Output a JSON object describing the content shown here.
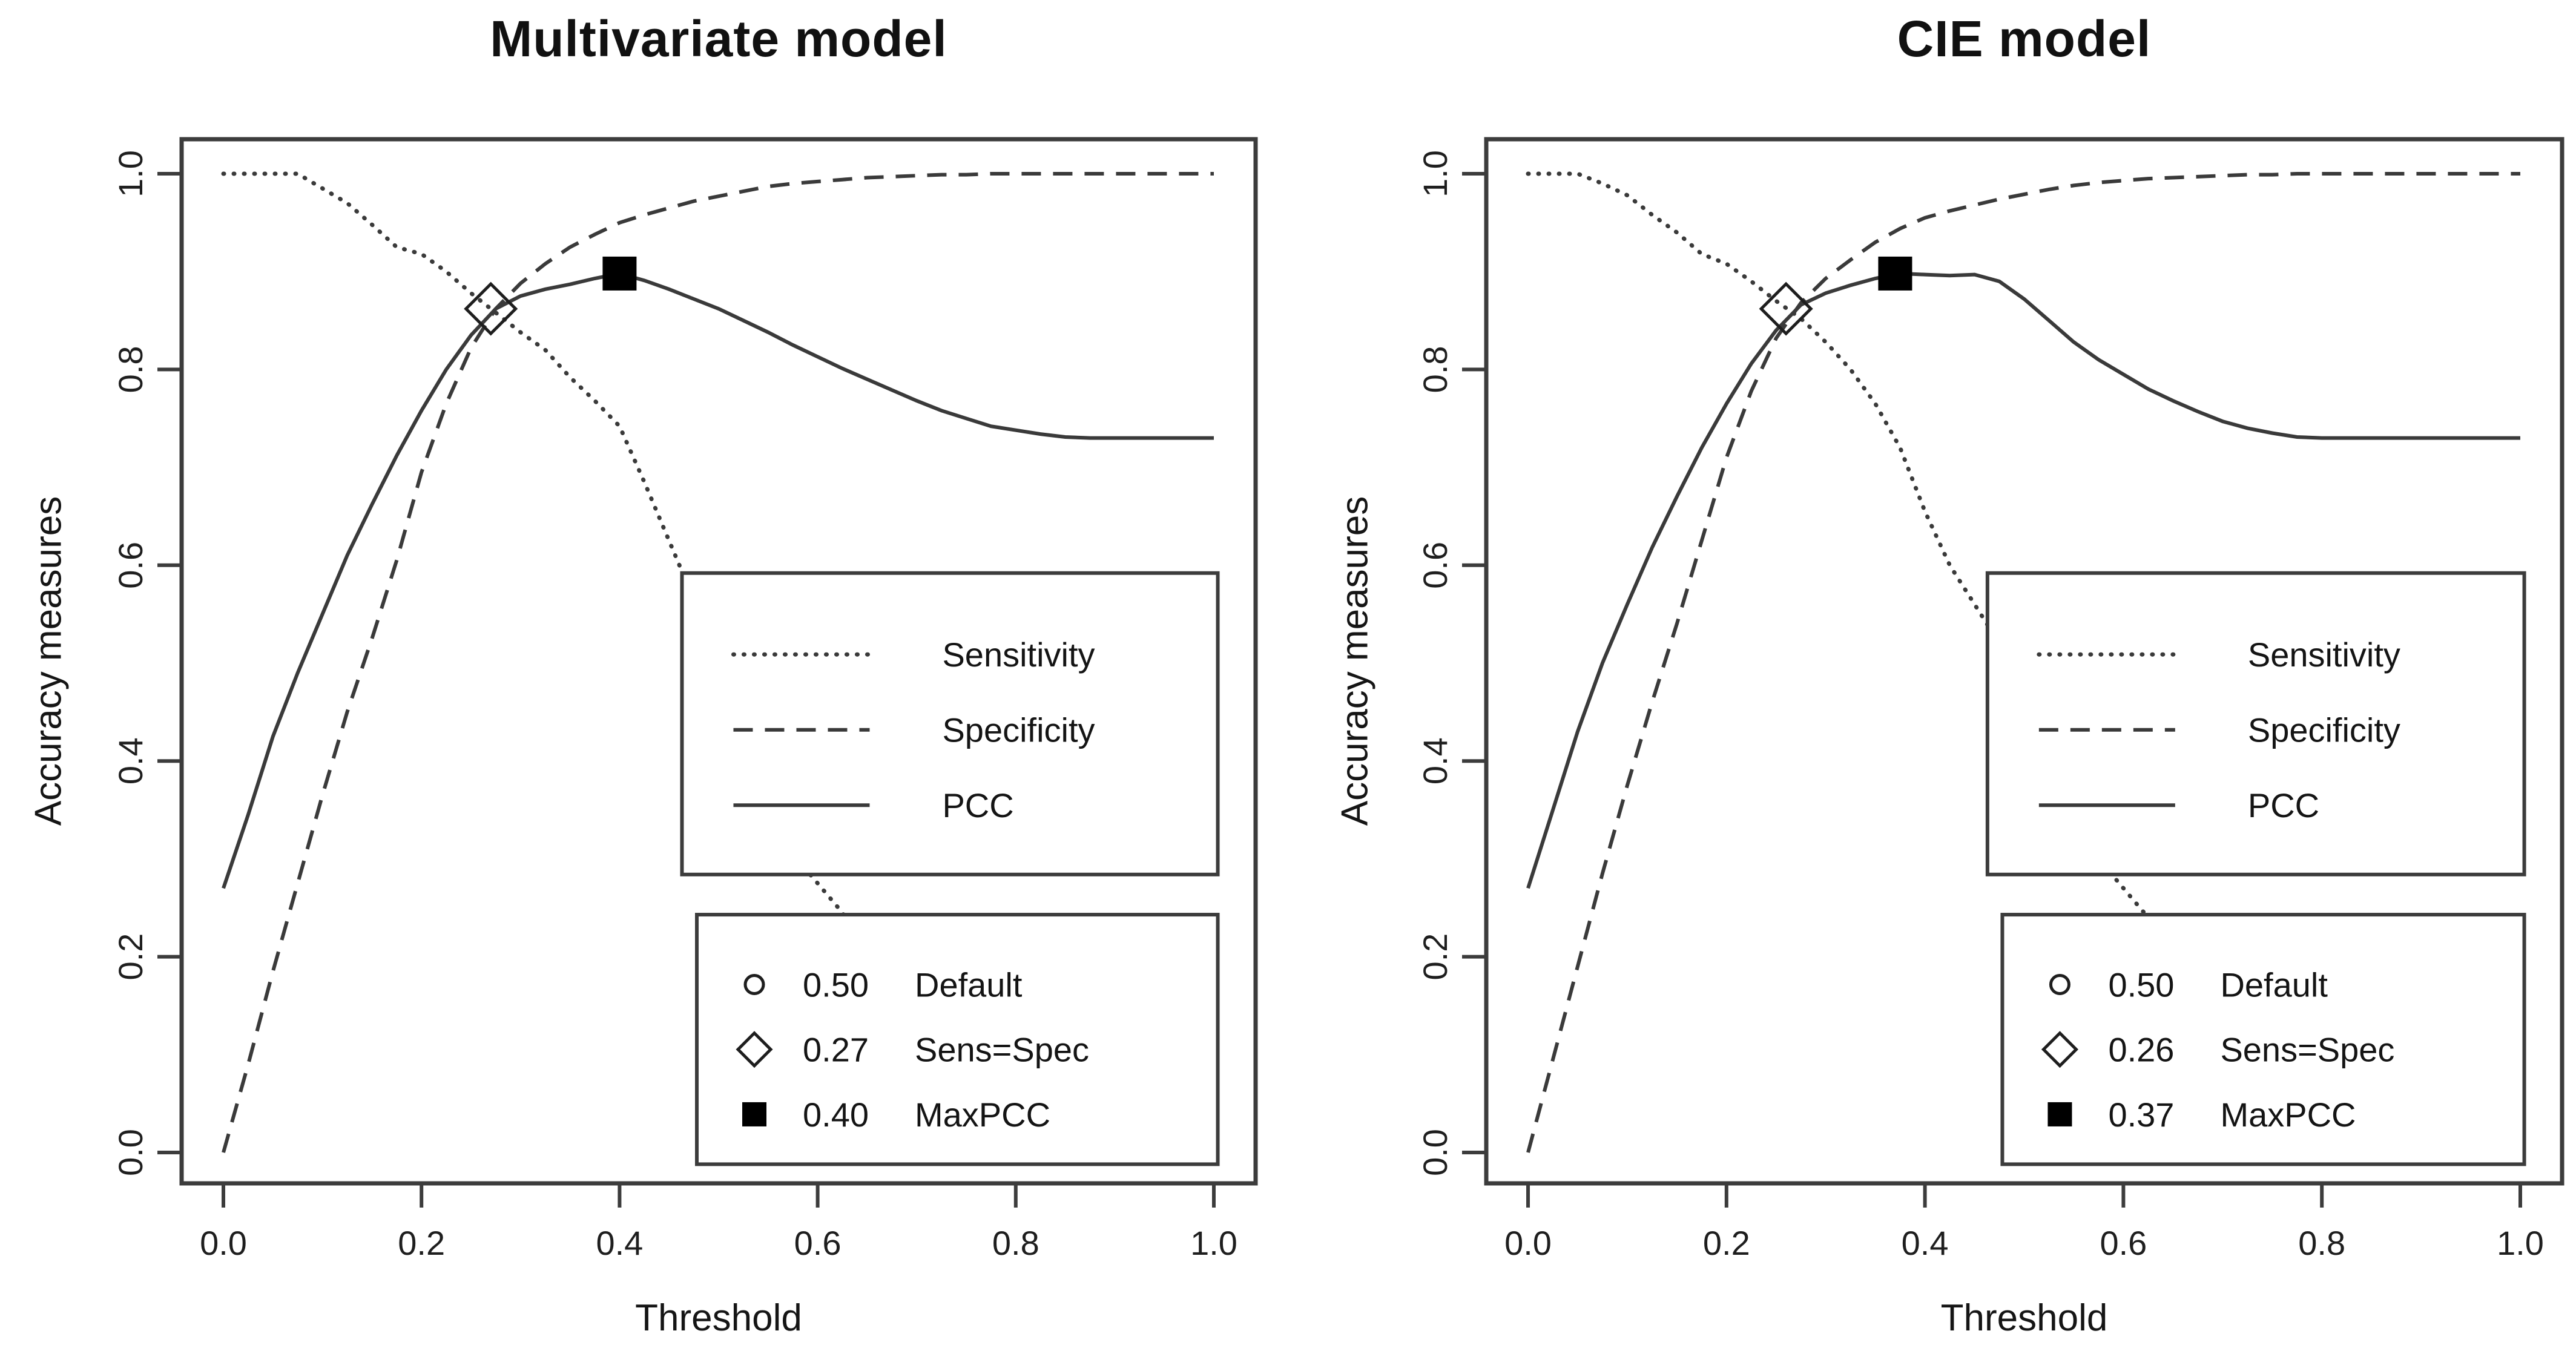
{
  "figure": {
    "background": "#ffffff",
    "ink_color": "#1e1e1e",
    "line_color": "#3a3a3a",
    "box_color": "#3c3c3c"
  },
  "chart_data": [
    {
      "type": "line",
      "title": "Multivariate model",
      "xlabel": "Threshold",
      "ylabel": "Accuracy measures",
      "xlim": [
        0,
        1
      ],
      "ylim": [
        0,
        1
      ],
      "grid": false,
      "x_tick_labels": [
        "0.0",
        "0.2",
        "0.4",
        "0.6",
        "0.8",
        "1.0"
      ],
      "y_tick_labels": [
        "0.0",
        "0.2",
        "0.4",
        "0.6",
        "0.8",
        "1.0"
      ],
      "x": [
        0,
        0.025,
        0.05,
        0.075,
        0.1,
        0.125,
        0.15,
        0.175,
        0.2,
        0.225,
        0.25,
        0.275,
        0.3,
        0.325,
        0.35,
        0.375,
        0.4,
        0.425,
        0.45,
        0.475,
        0.5,
        0.525,
        0.55,
        0.575,
        0.6,
        0.625,
        0.65,
        0.675,
        0.7,
        0.725,
        0.75,
        0.775,
        0.8,
        0.825,
        0.85,
        0.875,
        0.9,
        0.925,
        0.95,
        0.975,
        1
      ],
      "series": [
        {
          "name": "Sensitivity",
          "style": "dotted",
          "values": [
            1,
            1,
            1,
            1,
            0.985,
            0.97,
            0.948,
            0.925,
            0.918,
            0.9,
            0.878,
            0.858,
            0.838,
            0.82,
            0.792,
            0.768,
            0.742,
            0.685,
            0.625,
            0.565,
            0.47,
            0.4,
            0.345,
            0.305,
            0.275,
            0.245,
            0.2,
            0.155,
            0.115,
            0.09,
            0.07,
            0.055,
            0.04,
            0.03,
            0.025,
            0.02,
            0.015,
            0.012,
            0.01,
            0.008,
            0.005
          ]
        },
        {
          "name": "Specificity",
          "style": "dashed",
          "values": [
            0,
            0.09,
            0.185,
            0.275,
            0.365,
            0.45,
            0.525,
            0.605,
            0.695,
            0.765,
            0.822,
            0.862,
            0.888,
            0.908,
            0.925,
            0.938,
            0.95,
            0.958,
            0.965,
            0.972,
            0.977,
            0.982,
            0.987,
            0.99,
            0.992,
            0.994,
            0.996,
            0.997,
            0.998,
            0.999,
            0.999,
            1,
            1,
            1,
            1,
            1,
            1,
            1,
            1,
            1,
            1
          ]
        },
        {
          "name": "PCC",
          "style": "solid",
          "values": [
            0.27,
            0.345,
            0.425,
            0.49,
            0.55,
            0.61,
            0.662,
            0.712,
            0.758,
            0.8,
            0.835,
            0.862,
            0.875,
            0.882,
            0.887,
            0.893,
            0.898,
            0.891,
            0.882,
            0.872,
            0.862,
            0.85,
            0.838,
            0.825,
            0.813,
            0.801,
            0.79,
            0.779,
            0.768,
            0.758,
            0.75,
            0.742,
            0.738,
            0.734,
            0.731,
            0.73,
            0.73,
            0.73,
            0.73,
            0.73,
            0.73
          ]
        }
      ],
      "threshold_markers": [
        {
          "shape": "circle",
          "display": "0.50",
          "label": "Default",
          "t": 0.5,
          "v": 0.47
        },
        {
          "shape": "diamond",
          "display": "0.27",
          "label": "Sens=Spec",
          "t": 0.27,
          "v": 0.862
        },
        {
          "shape": "square",
          "display": "0.40",
          "label": "MaxPCC",
          "t": 0.4,
          "v": 0.898
        }
      ],
      "legend_position": "right-center and right-bottom inset boxes"
    },
    {
      "type": "line",
      "title": "CIE model",
      "xlabel": "Threshold",
      "ylabel": "Accuracy measures",
      "xlim": [
        0,
        1
      ],
      "ylim": [
        0,
        1
      ],
      "grid": false,
      "x_tick_labels": [
        "0.0",
        "0.2",
        "0.4",
        "0.6",
        "0.8",
        "1.0"
      ],
      "y_tick_labels": [
        "0.0",
        "0.2",
        "0.4",
        "0.6",
        "0.8",
        "1.0"
      ],
      "x": [
        0,
        0.025,
        0.05,
        0.075,
        0.1,
        0.125,
        0.15,
        0.175,
        0.2,
        0.225,
        0.25,
        0.275,
        0.3,
        0.325,
        0.35,
        0.375,
        0.4,
        0.425,
        0.45,
        0.475,
        0.5,
        0.525,
        0.55,
        0.575,
        0.6,
        0.625,
        0.65,
        0.675,
        0.7,
        0.725,
        0.75,
        0.775,
        0.8,
        0.825,
        0.85,
        0.875,
        0.9,
        0.925,
        0.95,
        0.975,
        1
      ],
      "series": [
        {
          "name": "Sensitivity",
          "style": "dotted",
          "values": [
            1,
            1,
            1,
            0.99,
            0.978,
            0.958,
            0.94,
            0.918,
            0.908,
            0.89,
            0.87,
            0.852,
            0.828,
            0.8,
            0.765,
            0.72,
            0.655,
            0.6,
            0.56,
            0.52,
            0.46,
            0.395,
            0.34,
            0.3,
            0.27,
            0.24,
            0.195,
            0.15,
            0.11,
            0.085,
            0.065,
            0.05,
            0.038,
            0.028,
            0.022,
            0.018,
            0.014,
            0.011,
            0.009,
            0.007,
            0.005
          ]
        },
        {
          "name": "Specificity",
          "style": "dashed",
          "values": [
            0,
            0.095,
            0.19,
            0.285,
            0.375,
            0.46,
            0.54,
            0.625,
            0.71,
            0.778,
            0.832,
            0.868,
            0.893,
            0.912,
            0.93,
            0.944,
            0.955,
            0.962,
            0.968,
            0.974,
            0.979,
            0.984,
            0.988,
            0.991,
            0.993,
            0.995,
            0.996,
            0.997,
            0.998,
            0.999,
            0.999,
            1,
            1,
            1,
            1,
            1,
            1,
            1,
            1,
            1,
            1
          ]
        },
        {
          "name": "PCC",
          "style": "solid",
          "values": [
            0.27,
            0.35,
            0.43,
            0.5,
            0.56,
            0.618,
            0.67,
            0.72,
            0.765,
            0.806,
            0.84,
            0.866,
            0.878,
            0.886,
            0.893,
            0.898,
            0.897,
            0.896,
            0.897,
            0.89,
            0.872,
            0.85,
            0.828,
            0.81,
            0.795,
            0.78,
            0.768,
            0.757,
            0.747,
            0.74,
            0.735,
            0.731,
            0.73,
            0.73,
            0.73,
            0.73,
            0.73,
            0.73,
            0.73,
            0.73,
            0.73
          ]
        }
      ],
      "threshold_markers": [
        {
          "shape": "circle",
          "display": "0.50",
          "label": "Default",
          "t": 0.5,
          "v": 0.46
        },
        {
          "shape": "diamond",
          "display": "0.26",
          "label": "Sens=Spec",
          "t": 0.26,
          "v": 0.862
        },
        {
          "shape": "square",
          "display": "0.37",
          "label": "MaxPCC",
          "t": 0.37,
          "v": 0.898
        }
      ],
      "legend_position": "right-center and right-bottom inset boxes"
    }
  ]
}
